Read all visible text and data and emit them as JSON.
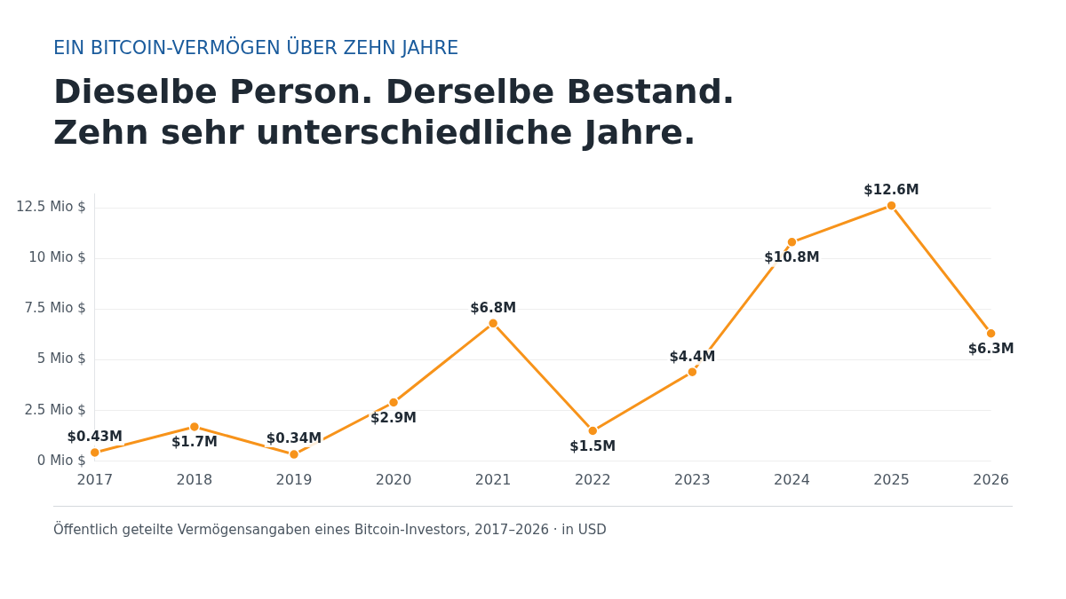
{
  "chart_data": {
    "type": "line",
    "subtitle": "EIN BITCOIN-VERMÖGEN ÜBER ZEHN JAHRE",
    "title": "Dieselbe Person. Derselbe Bestand.\nZehn sehr unterschiedliche Jahre.",
    "categories": [
      "2017",
      "2018",
      "2019",
      "2020",
      "2021",
      "2022",
      "2023",
      "2024",
      "2025",
      "2026"
    ],
    "series": [
      {
        "color": "#f7931a",
        "values": [
          0.43,
          1.7,
          0.34,
          2.9,
          6.8,
          1.5,
          4.4,
          10.8,
          12.6,
          6.3
        ],
        "value_labels": [
          "$0.43M",
          "$1.7M",
          "$0.34M",
          "$2.9M",
          "$6.8M",
          "$1.5M",
          "$4.4M",
          "$10.8M",
          "$12.6M",
          "$6.3M"
        ]
      }
    ],
    "ylim": [
      0,
      13.2
    ],
    "yticks": [
      {
        "value": 0,
        "label": "0 Mio $"
      },
      {
        "value": 2.5,
        "label": "2.5 Mio $"
      },
      {
        "value": 5,
        "label": "5 Mio $"
      },
      {
        "value": 7.5,
        "label": "7.5 Mio $"
      },
      {
        "value": 10,
        "label": "10 Mio $"
      },
      {
        "value": 12.5,
        "label": "12.5 Mio $"
      }
    ],
    "grid": "y",
    "marker": "circle",
    "legend": false,
    "annotations": [
      "Öffentlich geteilte Vermögensangaben eines Bitcoin-Investors, 2017–2026 · in USD"
    ]
  }
}
